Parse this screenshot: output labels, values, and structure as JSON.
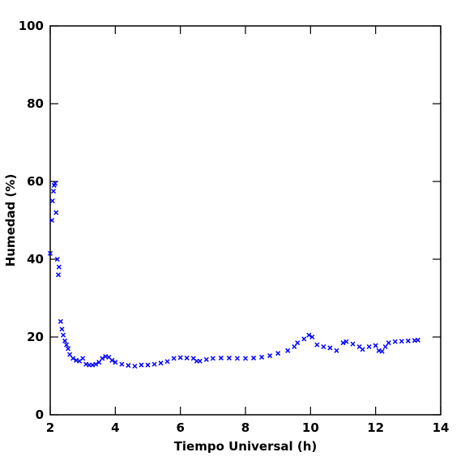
{
  "chart_data": {
    "type": "scatter",
    "xlabel": "Tiempo Universal (h)",
    "ylabel": "Humedad (%)",
    "xlim": [
      2,
      14
    ],
    "ylim": [
      0,
      100
    ],
    "xticks": [
      2,
      4,
      6,
      8,
      10,
      12,
      14
    ],
    "yticks": [
      0,
      20,
      40,
      60,
      80,
      100
    ],
    "series": [
      {
        "color": "#0000ff",
        "x": [
          2.0,
          2.05,
          2.07,
          2.1,
          2.12,
          2.15,
          2.18,
          2.22,
          2.25,
          2.27,
          2.32,
          2.36,
          2.4,
          2.45,
          2.5,
          2.55,
          2.6,
          2.7,
          2.8,
          2.9,
          3.0,
          3.1,
          3.2,
          3.3,
          3.4,
          3.5,
          3.6,
          3.7,
          3.8,
          3.9,
          4.0,
          4.2,
          4.4,
          4.6,
          4.8,
          5.0,
          5.2,
          5.4,
          5.6,
          5.8,
          6.0,
          6.2,
          6.4,
          6.5,
          6.6,
          6.8,
          7.0,
          7.25,
          7.5,
          7.75,
          8.0,
          8.25,
          8.5,
          8.75,
          9.0,
          9.3,
          9.5,
          9.6,
          9.8,
          9.95,
          10.05,
          10.2,
          10.4,
          10.6,
          10.8,
          11.0,
          11.1,
          11.3,
          11.5,
          11.6,
          11.8,
          12.0,
          12.1,
          12.2,
          12.3,
          12.4,
          12.6,
          12.8,
          13.0,
          13.2,
          13.3
        ],
        "values": [
          41.5,
          50,
          55,
          57.5,
          59,
          59.5,
          52,
          40,
          36,
          38,
          24,
          22,
          20.5,
          19,
          18,
          17,
          15.5,
          14.5,
          14,
          13.8,
          14.5,
          13,
          12.8,
          12.8,
          13,
          13.5,
          14.5,
          15,
          14.8,
          14,
          13.5,
          13,
          12.7,
          12.5,
          12.8,
          12.8,
          13,
          13.3,
          13.7,
          14.5,
          14.7,
          14.6,
          14.5,
          13.8,
          13.8,
          14.2,
          14.5,
          14.6,
          14.6,
          14.5,
          14.5,
          14.6,
          14.8,
          15.2,
          15.8,
          16.5,
          17.5,
          18.5,
          19.5,
          20.5,
          20,
          18,
          17.5,
          17.2,
          16.5,
          18.5,
          18.8,
          18.2,
          17.5,
          16.8,
          17.5,
          17.8,
          16.5,
          16.3,
          17.5,
          18.5,
          18.8,
          18.9,
          19,
          19.1,
          19.2
        ]
      }
    ]
  }
}
